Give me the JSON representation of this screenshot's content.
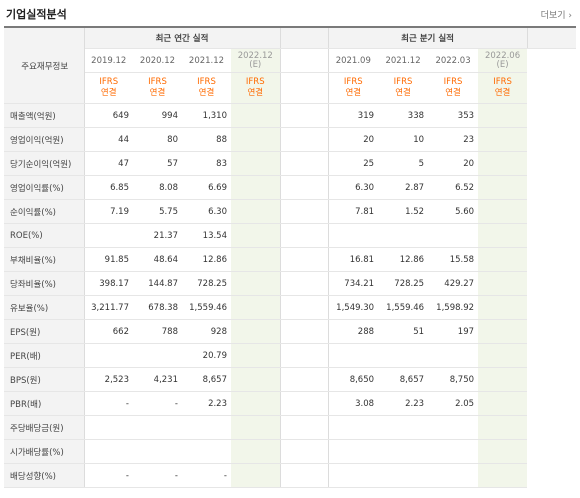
{
  "header": {
    "title": "기업실적분석",
    "more_link": "더보기"
  },
  "table": {
    "row_header_title": "주요재무정보",
    "annual_group_label": "최근 연간 실적",
    "quarterly_group_label": "최근 분기 실적",
    "annual_periods": [
      {
        "label": "2019.12",
        "estimate": ""
      },
      {
        "label": "2020.12",
        "estimate": ""
      },
      {
        "label": "2021.12",
        "estimate": ""
      },
      {
        "label": "2022.12",
        "estimate": "(E)"
      }
    ],
    "quarterly_periods": [
      {
        "label": "2021.09",
        "estimate": ""
      },
      {
        "label": "2021.12",
        "estimate": ""
      },
      {
        "label": "2022.03",
        "estimate": ""
      },
      {
        "label": "2022.06",
        "estimate": "(E)"
      }
    ],
    "ifrs_label": [
      "IFRS",
      "연결"
    ],
    "rows": [
      {
        "label": "매출액(억원)",
        "annual": [
          "649",
          "994",
          "1,310",
          ""
        ],
        "quarterly": [
          "319",
          "338",
          "353",
          ""
        ]
      },
      {
        "label": "영업이익(억원)",
        "annual": [
          "44",
          "80",
          "88",
          ""
        ],
        "quarterly": [
          "20",
          "10",
          "23",
          ""
        ]
      },
      {
        "label": "당기순이익(억원)",
        "annual": [
          "47",
          "57",
          "83",
          ""
        ],
        "quarterly": [
          "25",
          "5",
          "20",
          ""
        ]
      },
      {
        "label": "영업이익률(%)",
        "annual": [
          "6.85",
          "8.08",
          "6.69",
          ""
        ],
        "quarterly": [
          "6.30",
          "2.87",
          "6.52",
          ""
        ]
      },
      {
        "label": "순이익률(%)",
        "annual": [
          "7.19",
          "5.75",
          "6.30",
          ""
        ],
        "quarterly": [
          "7.81",
          "1.52",
          "5.60",
          ""
        ]
      },
      {
        "label": "ROE(%)",
        "annual": [
          "",
          "21.37",
          "13.54",
          ""
        ],
        "quarterly": [
          "",
          "",
          "",
          ""
        ]
      },
      {
        "label": "부채비율(%)",
        "annual": [
          "91.85",
          "48.64",
          "12.86",
          ""
        ],
        "quarterly": [
          "16.81",
          "12.86",
          "15.58",
          ""
        ]
      },
      {
        "label": "당좌비율(%)",
        "annual": [
          "398.17",
          "144.87",
          "728.25",
          ""
        ],
        "quarterly": [
          "734.21",
          "728.25",
          "429.27",
          ""
        ]
      },
      {
        "label": "유보율(%)",
        "annual": [
          "3,211.77",
          "678.38",
          "1,559.46",
          ""
        ],
        "quarterly": [
          "1,549.30",
          "1,559.46",
          "1,598.92",
          ""
        ]
      },
      {
        "label": "EPS(원)",
        "annual": [
          "662",
          "788",
          "928",
          ""
        ],
        "quarterly": [
          "288",
          "51",
          "197",
          ""
        ]
      },
      {
        "label": "PER(배)",
        "annual": [
          "",
          "",
          "20.79",
          ""
        ],
        "quarterly": [
          "",
          "",
          "",
          ""
        ]
      },
      {
        "label": "BPS(원)",
        "annual": [
          "2,523",
          "4,231",
          "8,657",
          ""
        ],
        "quarterly": [
          "8,650",
          "8,657",
          "8,750",
          ""
        ]
      },
      {
        "label": "PBR(배)",
        "annual": [
          "-",
          "-",
          "2.23",
          ""
        ],
        "quarterly": [
          "3.08",
          "2.23",
          "2.05",
          ""
        ]
      },
      {
        "label": "주당배당금(원)",
        "annual": [
          "",
          "",
          "",
          ""
        ],
        "quarterly": [
          "",
          "",
          "",
          ""
        ]
      },
      {
        "label": "시가배당률(%)",
        "annual": [
          "",
          "",
          "",
          ""
        ],
        "quarterly": [
          "",
          "",
          "",
          ""
        ]
      },
      {
        "label": "배당성향(%)",
        "annual": [
          "-",
          "-",
          "-",
          ""
        ],
        "quarterly": [
          "",
          "",
          "",
          ""
        ]
      }
    ]
  },
  "colors": {
    "ifrs": "#ff6a00",
    "estimate_bg": "#f2f6ea",
    "header_bg": "#f3f3f3"
  }
}
